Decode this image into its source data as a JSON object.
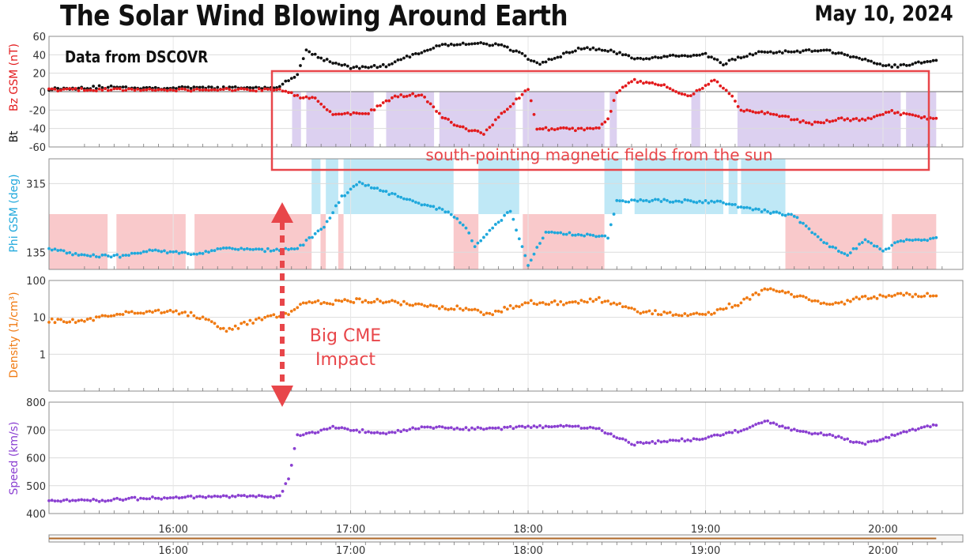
{
  "title": "The Solar Wind Blowing Around Earth",
  "date": "May 10, 2024",
  "source_note": "Data from DSCOVR",
  "colors": {
    "bt": "#111111",
    "bz": "#e31a1c",
    "phi": "#1fa8dc",
    "density": "#f07a12",
    "speed": "#8a3fd1",
    "south_shade": "#dcd0f0",
    "phi_away_shade": "#bfe8f6",
    "phi_toward_shade": "#f9c9cb",
    "annotation": "#e8464a"
  },
  "chart_data": [
    {
      "type": "scatter",
      "panel": "magnetic field",
      "ylabel_parts": [
        "Bt",
        "Bz GSM (nT)"
      ],
      "ylim": [
        -60,
        60
      ],
      "yticks": [
        "60",
        "40",
        "20",
        "0",
        "-20",
        "-40",
        "-60"
      ],
      "grid": true,
      "series": [
        {
          "name": "Bt",
          "points": [
            [
              15.3,
              3
            ],
            [
              15.6,
              5
            ],
            [
              15.9,
              4
            ],
            [
              16.2,
              4
            ],
            [
              16.5,
              4
            ],
            [
              16.6,
              6
            ],
            [
              16.7,
              18
            ],
            [
              16.75,
              45
            ],
            [
              16.85,
              35
            ],
            [
              17.0,
              26
            ],
            [
              17.2,
              28
            ],
            [
              17.35,
              40
            ],
            [
              17.5,
              50
            ],
            [
              17.7,
              53
            ],
            [
              17.85,
              50
            ],
            [
              17.95,
              42
            ],
            [
              18.05,
              30
            ],
            [
              18.3,
              47
            ],
            [
              18.45,
              45
            ],
            [
              18.6,
              36
            ],
            [
              18.8,
              38
            ],
            [
              19.0,
              40
            ],
            [
              19.1,
              30
            ],
            [
              19.2,
              38
            ],
            [
              19.3,
              42
            ],
            [
              19.5,
              44
            ],
            [
              19.7,
              44
            ],
            [
              19.9,
              35
            ],
            [
              20.0,
              28
            ],
            [
              20.1,
              28
            ],
            [
              20.3,
              34
            ]
          ]
        },
        {
          "name": "Bz GSM",
          "points": [
            [
              15.3,
              2
            ],
            [
              15.6,
              2
            ],
            [
              15.9,
              2
            ],
            [
              16.2,
              2
            ],
            [
              16.5,
              2
            ],
            [
              16.6,
              3
            ],
            [
              16.7,
              -5
            ],
            [
              16.8,
              -8
            ],
            [
              16.9,
              -25
            ],
            [
              17.1,
              -23
            ],
            [
              17.25,
              -5
            ],
            [
              17.4,
              -3
            ],
            [
              17.5,
              -25
            ],
            [
              17.6,
              -38
            ],
            [
              17.75,
              -45
            ],
            [
              17.85,
              -25
            ],
            [
              18.0,
              3
            ],
            [
              18.05,
              -40
            ],
            [
              18.3,
              -41
            ],
            [
              18.4,
              -40
            ],
            [
              18.45,
              -30
            ],
            [
              18.5,
              0
            ],
            [
              18.6,
              12
            ],
            [
              18.75,
              8
            ],
            [
              18.9,
              -5
            ],
            [
              19.05,
              12
            ],
            [
              19.15,
              -5
            ],
            [
              19.2,
              -20
            ],
            [
              19.4,
              -25
            ],
            [
              19.6,
              -35
            ],
            [
              19.75,
              -30
            ],
            [
              19.9,
              -30
            ],
            [
              20.05,
              -22
            ],
            [
              20.2,
              -28
            ],
            [
              20.3,
              -30
            ]
          ]
        }
      ],
      "shaded_intervals_bz_south": [
        [
          16.67,
          16.72
        ],
        [
          16.75,
          17.13
        ],
        [
          17.2,
          17.47
        ],
        [
          17.5,
          17.93
        ],
        [
          17.97,
          18.43
        ],
        [
          18.46,
          18.5
        ],
        [
          18.92,
          18.97
        ],
        [
          19.18,
          20.1
        ],
        [
          20.13,
          20.3
        ]
      ]
    },
    {
      "type": "scatter",
      "panel": "magnetic field angle",
      "ylabel": "Phi GSM (deg)",
      "ylim": [
        90,
        380
      ],
      "yticks": [
        "315",
        "135"
      ],
      "grid": true,
      "series": [
        {
          "name": "Phi GSM",
          "points": [
            [
              15.3,
              145
            ],
            [
              15.5,
              125
            ],
            [
              15.7,
              125
            ],
            [
              15.9,
              140
            ],
            [
              16.1,
              130
            ],
            [
              16.3,
              145
            ],
            [
              16.5,
              140
            ],
            [
              16.7,
              145
            ],
            [
              16.85,
              200
            ],
            [
              16.95,
              280
            ],
            [
              17.05,
              320
            ],
            [
              17.15,
              300
            ],
            [
              17.35,
              270
            ],
            [
              17.55,
              240
            ],
            [
              17.65,
              200
            ],
            [
              17.7,
              150
            ],
            [
              17.9,
              245
            ],
            [
              18.0,
              100
            ],
            [
              18.1,
              190
            ],
            [
              18.3,
              180
            ],
            [
              18.45,
              175
            ],
            [
              18.5,
              270
            ],
            [
              18.7,
              270
            ],
            [
              18.9,
              270
            ],
            [
              19.1,
              265
            ],
            [
              19.3,
              245
            ],
            [
              19.5,
              230
            ],
            [
              19.7,
              150
            ],
            [
              19.8,
              130
            ],
            [
              19.9,
              165
            ],
            [
              20.0,
              140
            ],
            [
              20.1,
              165
            ],
            [
              20.3,
              170
            ]
          ]
        }
      ],
      "shaded_intervals_away": [
        [
          16.78,
          16.83
        ],
        [
          16.86,
          16.93
        ],
        [
          16.96,
          17.58
        ],
        [
          17.72,
          17.95
        ],
        [
          18.43,
          18.53
        ],
        [
          18.6,
          19.1
        ],
        [
          19.13,
          19.18
        ],
        [
          19.2,
          19.45
        ]
      ],
      "shaded_intervals_toward": [
        [
          15.3,
          15.63
        ],
        [
          15.68,
          16.07
        ],
        [
          16.12,
          16.78
        ],
        [
          16.83,
          16.86
        ],
        [
          16.93,
          16.96
        ],
        [
          17.58,
          17.72
        ],
        [
          17.97,
          18.43
        ],
        [
          19.45,
          20.0
        ],
        [
          20.05,
          20.3
        ]
      ]
    },
    {
      "type": "scatter",
      "panel": "density",
      "ylabel": "Density (1/cm³)",
      "yscale": "log",
      "ylim": [
        0.1,
        100
      ],
      "yticks": [
        "100",
        "10",
        "1"
      ],
      "grid": true,
      "series": [
        {
          "name": "Density",
          "points": [
            [
              15.3,
              8
            ],
            [
              15.5,
              8
            ],
            [
              15.7,
              12
            ],
            [
              15.9,
              15
            ],
            [
              16.1,
              12
            ],
            [
              16.3,
              4
            ],
            [
              16.5,
              9
            ],
            [
              16.65,
              12
            ],
            [
              16.75,
              25
            ],
            [
              16.9,
              25
            ],
            [
              17.0,
              28
            ],
            [
              17.2,
              28
            ],
            [
              17.4,
              20
            ],
            [
              17.6,
              18
            ],
            [
              17.8,
              12
            ],
            [
              18.0,
              25
            ],
            [
              18.2,
              25
            ],
            [
              18.4,
              30
            ],
            [
              18.6,
              15
            ],
            [
              18.8,
              13
            ],
            [
              19.0,
              11
            ],
            [
              19.2,
              25
            ],
            [
              19.35,
              55
            ],
            [
              19.5,
              40
            ],
            [
              19.7,
              20
            ],
            [
              19.9,
              35
            ],
            [
              20.1,
              40
            ],
            [
              20.3,
              40
            ]
          ]
        }
      ]
    },
    {
      "type": "scatter",
      "panel": "speed",
      "ylabel": "Speed (km/s)",
      "ylim": [
        400,
        800
      ],
      "yticks": [
        "800",
        "700",
        "600",
        "500",
        "400"
      ],
      "grid": true,
      "series": [
        {
          "name": "Speed",
          "points": [
            [
              15.3,
              450
            ],
            [
              15.5,
              445
            ],
            [
              15.7,
              452
            ],
            [
              15.9,
              455
            ],
            [
              16.1,
              458
            ],
            [
              16.3,
              460
            ],
            [
              16.5,
              462
            ],
            [
              16.6,
              460
            ],
            [
              16.65,
              525
            ],
            [
              16.7,
              680
            ],
            [
              16.8,
              690
            ],
            [
              16.9,
              710
            ],
            [
              17.0,
              700
            ],
            [
              17.2,
              690
            ],
            [
              17.4,
              710
            ],
            [
              17.6,
              705
            ],
            [
              17.8,
              705
            ],
            [
              18.0,
              710
            ],
            [
              18.2,
              715
            ],
            [
              18.4,
              705
            ],
            [
              18.5,
              670
            ],
            [
              18.6,
              650
            ],
            [
              18.8,
              660
            ],
            [
              19.0,
              670
            ],
            [
              19.2,
              700
            ],
            [
              19.35,
              730
            ],
            [
              19.5,
              700
            ],
            [
              19.7,
              680
            ],
            [
              19.9,
              650
            ],
            [
              20.1,
              690
            ],
            [
              20.3,
              720
            ]
          ]
        }
      ]
    }
  ],
  "x_axis": {
    "range": [
      15.3,
      20.45
    ],
    "tick_labels": [
      "16:00",
      "17:00",
      "18:00",
      "19:00",
      "20:00"
    ]
  },
  "annotations": {
    "south_fields": "south-pointing magnetic fields from the sun",
    "cme_line1": "Big CME",
    "cme_line2": "Impact"
  }
}
